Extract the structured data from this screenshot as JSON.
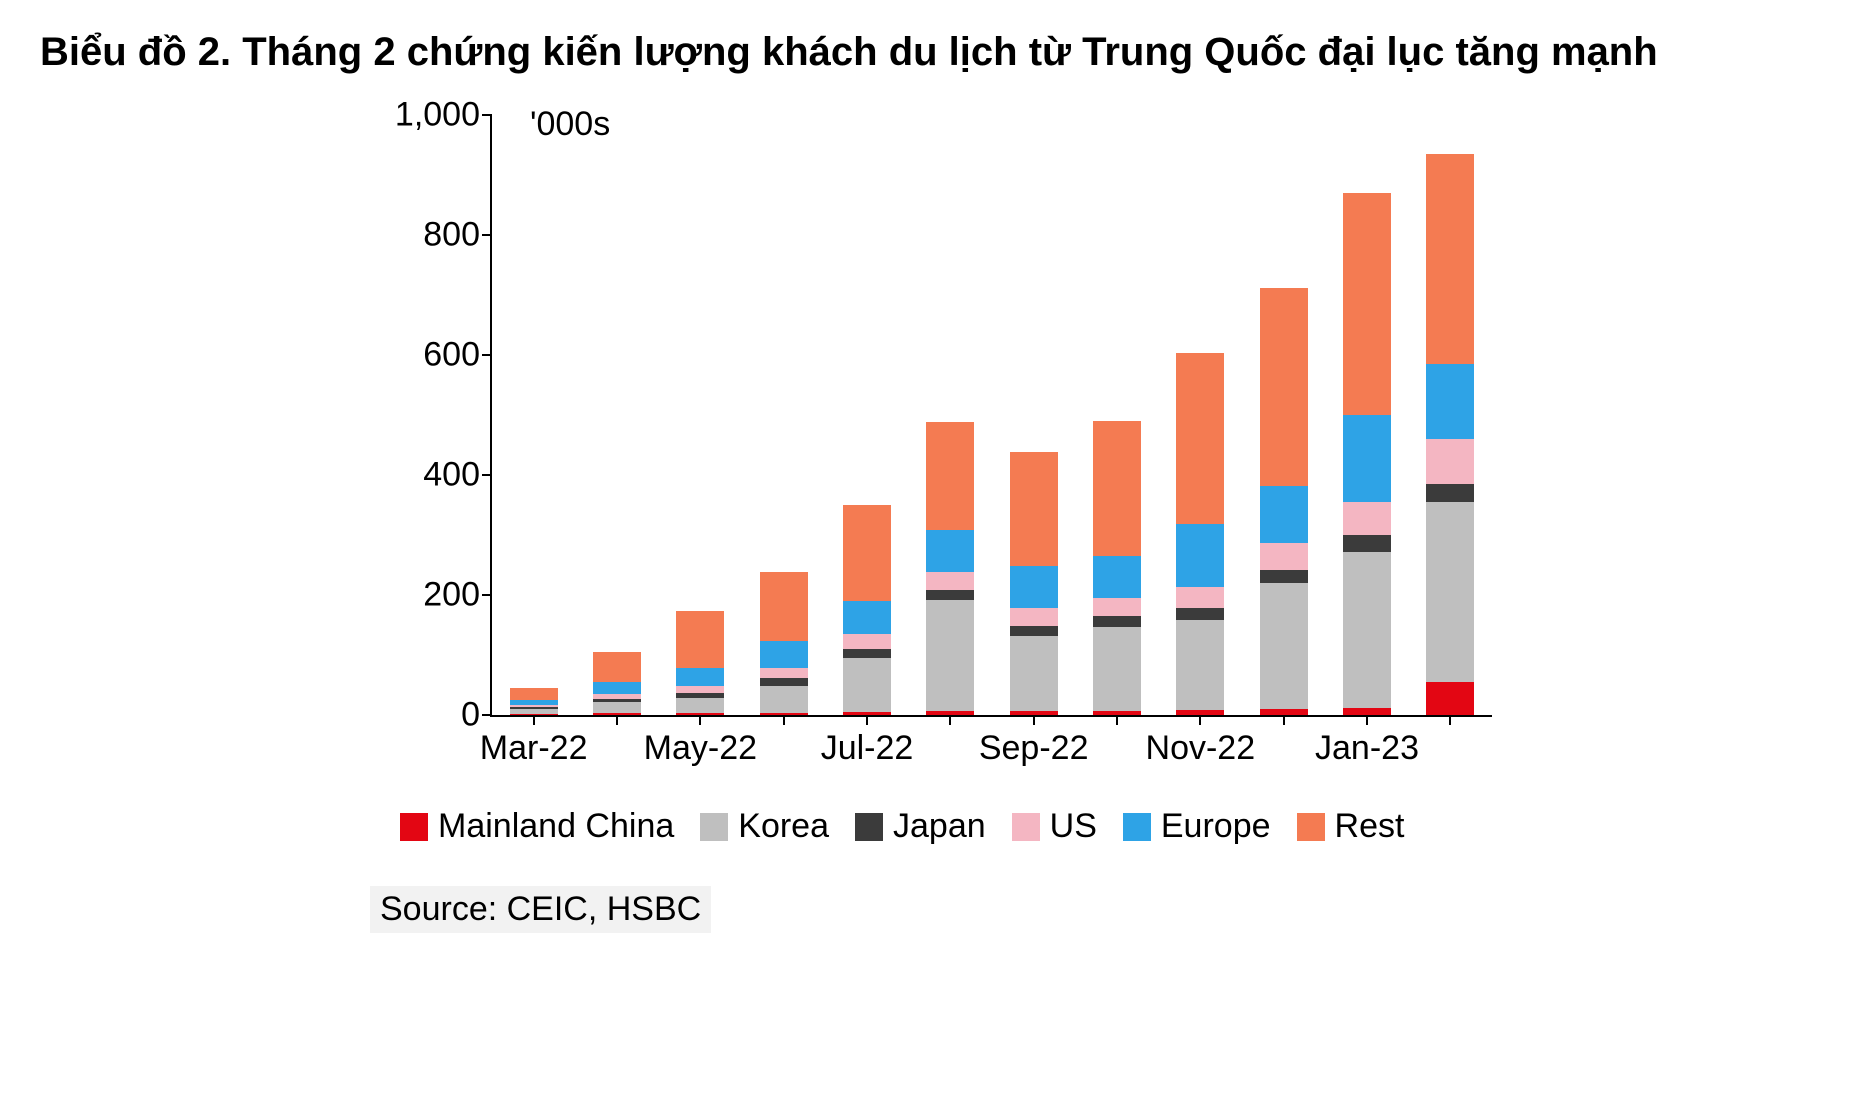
{
  "title": "Biểu đồ 2. Tháng 2 chứng kiến lượng khách du lịch từ Trung Quốc đại lục tăng mạnh",
  "source": "Source: CEIC, HSBC",
  "chart": {
    "type": "stacked-bar",
    "y_unit_label": "'000s",
    "background_color": "#ffffff",
    "axis_color": "#000000",
    "label_fontsize_pt": 26,
    "title_fontsize_pt": 30,
    "ylim": [
      0,
      1000
    ],
    "ytick_step": 200,
    "yticks": [
      0,
      200,
      400,
      600,
      800,
      1000
    ],
    "bar_width_ratio": 0.58,
    "categories": [
      "Mar-22",
      "Apr-22",
      "May-22",
      "Jun-22",
      "Jul-22",
      "Aug-22",
      "Sep-22",
      "Oct-22",
      "Nov-22",
      "Dec-22",
      "Jan-23",
      "Feb-23"
    ],
    "x_visible_labels": [
      "Mar-22",
      "May-22",
      "Jul-22",
      "Sep-22",
      "Nov-22",
      "Jan-23"
    ],
    "series_order": [
      "mainland_china",
      "korea",
      "japan",
      "us",
      "europe",
      "rest"
    ],
    "series": {
      "mainland_china": {
        "label": "Mainland China",
        "color": "#e30613"
      },
      "korea": {
        "label": "Korea",
        "color": "#bfbfbf"
      },
      "japan": {
        "label": "Japan",
        "color": "#3b3b3b"
      },
      "us": {
        "label": "US",
        "color": "#f4b6c2"
      },
      "europe": {
        "label": "Europe",
        "color": "#2ea3e6"
      },
      "rest": {
        "label": "Rest",
        "color": "#f47b52"
      }
    },
    "data": {
      "mainland_china": [
        2,
        3,
        3,
        4,
        5,
        6,
        6,
        7,
        8,
        10,
        12,
        55
      ],
      "korea": [
        8,
        18,
        25,
        45,
        90,
        185,
        125,
        140,
        150,
        210,
        260,
        300
      ],
      "japan": [
        3,
        6,
        9,
        12,
        15,
        18,
        18,
        18,
        20,
        22,
        28,
        30
      ],
      "us": [
        4,
        8,
        12,
        18,
        25,
        30,
        30,
        30,
        35,
        45,
        55,
        75
      ],
      "europe": [
        8,
        20,
        30,
        45,
        55,
        70,
        70,
        70,
        105,
        95,
        145,
        125
      ],
      "rest": [
        20,
        50,
        95,
        115,
        160,
        180,
        190,
        225,
        285,
        330,
        370,
        350
      ]
    }
  }
}
